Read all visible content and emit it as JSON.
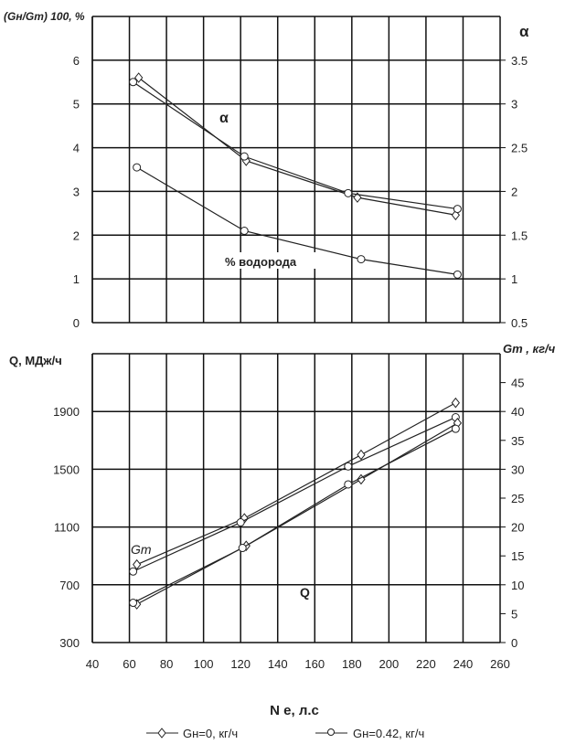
{
  "chart_data": [
    {
      "type": "line",
      "ylabel_left": "(Gн/Gm) 100, %",
      "ylabel_right": "α",
      "xlim": [
        40,
        260
      ],
      "ylim_left": [
        0,
        7
      ],
      "ylim_right": [
        0.5,
        4
      ],
      "yticks_left": [
        "0",
        "1",
        "2",
        "3",
        "4",
        "5",
        "6"
      ],
      "yticks_right": [
        "0.5",
        "1",
        "1.5",
        "2",
        "2.5",
        "3",
        "3.5"
      ],
      "grid": true,
      "annotations": [
        "α",
        "% водорода"
      ],
      "series": [
        {
          "name": "α, Gн=0, кг/ч",
          "axis": "right",
          "marker": "diamond",
          "x": [
            65,
            123,
            183,
            236
          ],
          "y": [
            3.3,
            2.35,
            1.93,
            1.73
          ]
        },
        {
          "name": "α, Gн=0.42, кг/ч",
          "axis": "right",
          "marker": "circle",
          "x": [
            62,
            122,
            178,
            237
          ],
          "y": [
            3.25,
            2.4,
            1.98,
            1.8
          ]
        },
        {
          "name": "% водорода",
          "axis": "left",
          "marker": "circle",
          "x": [
            64,
            122,
            185,
            237
          ],
          "y": [
            3.55,
            2.1,
            1.45,
            1.1
          ]
        }
      ]
    },
    {
      "type": "line",
      "xlabel": "N e, л.с",
      "ylabel_left": "Q, МДж/ч",
      "ylabel_right": "Gm , кг/ч",
      "xlim": [
        40,
        260
      ],
      "ylim_left": [
        300,
        2300
      ],
      "ylim_right": [
        0,
        50
      ],
      "xticks": [
        "40",
        "60",
        "80",
        "100",
        "120",
        "140",
        "160",
        "180",
        "200",
        "220",
        "240",
        "260"
      ],
      "yticks_left": [
        "300",
        "700",
        "1100",
        "1500",
        "1900"
      ],
      "yticks_right": [
        "0",
        "5",
        "10",
        "15",
        "20",
        "25",
        "30",
        "35",
        "40",
        "45"
      ],
      "grid": true,
      "annotations": [
        "Gm",
        "Q"
      ],
      "series": [
        {
          "name": "Gm, Gн=0, кг/ч",
          "axis": "right",
          "marker": "diamond",
          "x": [
            64,
            122,
            185,
            236
          ],
          "y": [
            13.5,
            21.5,
            32.5,
            41.5
          ]
        },
        {
          "name": "Gm, Gн=0.42, кг/ч",
          "axis": "right",
          "marker": "circle",
          "x": [
            62,
            120,
            178,
            236
          ],
          "y": [
            12.3,
            20.8,
            30.5,
            39
          ]
        },
        {
          "name": "Q, Gн=0, кг/ч",
          "axis": "left",
          "marker": "diamond",
          "x": [
            64,
            123,
            185,
            237
          ],
          "y": [
            565,
            970,
            1430,
            1820
          ]
        },
        {
          "name": "Q, Gн=0.42, кг/ч",
          "axis": "left",
          "marker": "circle",
          "x": [
            62,
            121,
            178,
            236
          ],
          "y": [
            575,
            955,
            1395,
            1780
          ]
        }
      ]
    }
  ],
  "legend": {
    "position": "bottom",
    "items": [
      {
        "label": "Gн=0, кг/ч",
        "marker": "diamond"
      },
      {
        "label": "Gн=0.42, кг/ч",
        "marker": "circle"
      }
    ]
  }
}
